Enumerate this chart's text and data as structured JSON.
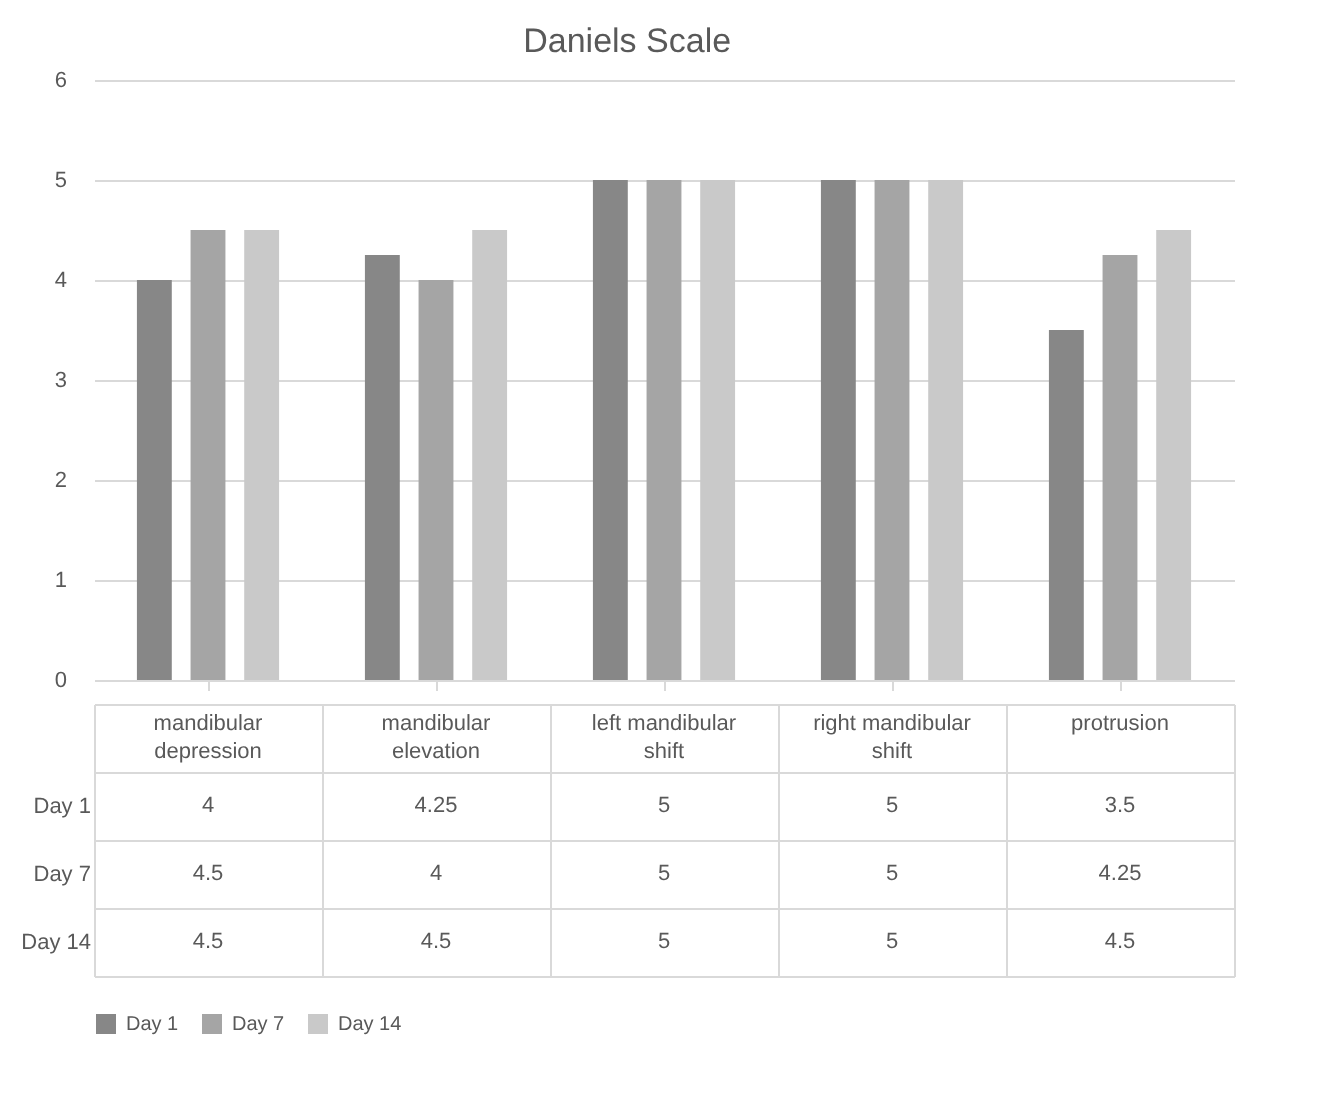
{
  "chart_data": {
    "type": "bar",
    "title": "Daniels Scale",
    "categories": [
      "mandibular depression",
      "mandibular elevation",
      "left mandibular shift",
      "right mandibular shift",
      "protrusion"
    ],
    "series": [
      {
        "name": "Day 1",
        "color": "#878787",
        "values": [
          4,
          4.25,
          5,
          5,
          3.5
        ]
      },
      {
        "name": "Day 7",
        "color": "#a5a5a5",
        "values": [
          4.5,
          4,
          5,
          5,
          4.25
        ]
      },
      {
        "name": "Day 14",
        "color": "#c9c9c9",
        "values": [
          4.5,
          4.5,
          5,
          5,
          4.5
        ]
      }
    ],
    "ylim": [
      0,
      6
    ],
    "yticks": [
      0,
      1,
      2,
      3,
      4,
      5,
      6
    ],
    "grid": "y",
    "legend": "bottom",
    "data_labels": true
  }
}
